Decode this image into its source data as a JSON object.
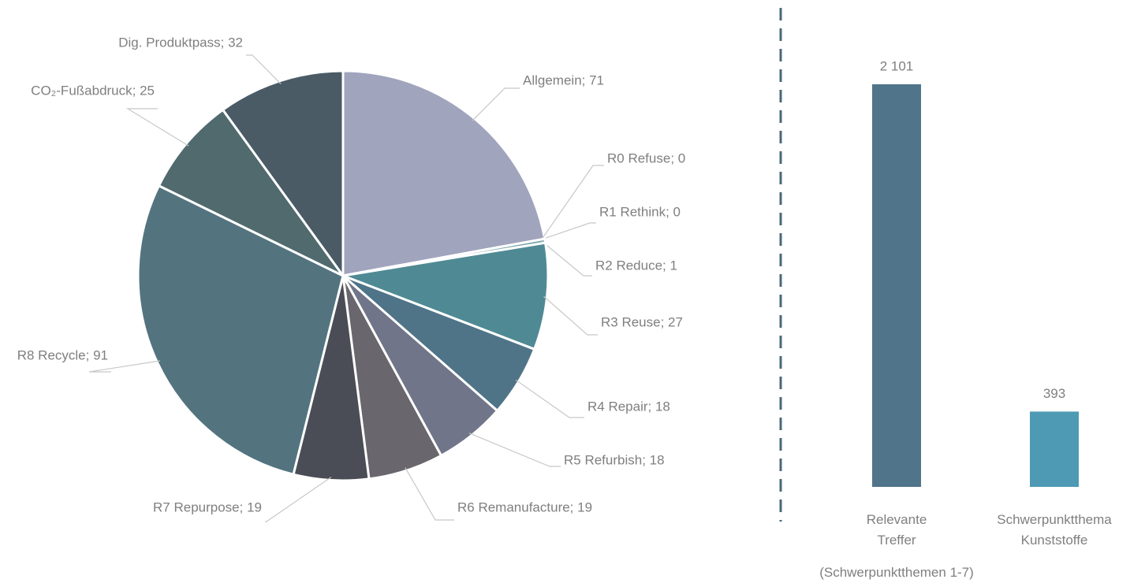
{
  "chart_data": [
    {
      "type": "pie",
      "values": [
        71,
        0,
        0,
        1,
        27,
        18,
        18,
        19,
        19,
        91,
        25,
        32
      ],
      "value_labels": [
        "Allgemein; 71",
        "R0 Refuse; 0",
        "R1 Rethink; 0",
        "R2 Reduce; 1",
        "R3 Reuse; 27",
        "R4 Repair; 18",
        "R5 Refurbish; 18",
        "R6 Remanufacture; 19",
        "R7 Repurpose; 19",
        "R8 Recycle; 91",
        "CO₂-Fußabdruck; 25",
        "Dig. Produktpass; 32"
      ],
      "colors": [
        "#a0a4bd",
        "#a3b4bb",
        "#8fb0b6",
        "#7aa7ae",
        "#4f8a94",
        "#4f7488",
        "#707589",
        "#69666d",
        "#4a4d55",
        "#53747f",
        "#506a6e",
        "#4a5b66"
      ]
    },
    {
      "type": "bar",
      "categories": [
        "Relevante Treffer",
        "Schwerpunktthema Kunststoffe"
      ],
      "values": [
        2101,
        393
      ],
      "value_labels": [
        "2 101",
        "393"
      ],
      "colors": [
        "#50748a",
        "#4e9ab4"
      ],
      "note": "(Schwerpunktthemen 1-7)"
    }
  ]
}
